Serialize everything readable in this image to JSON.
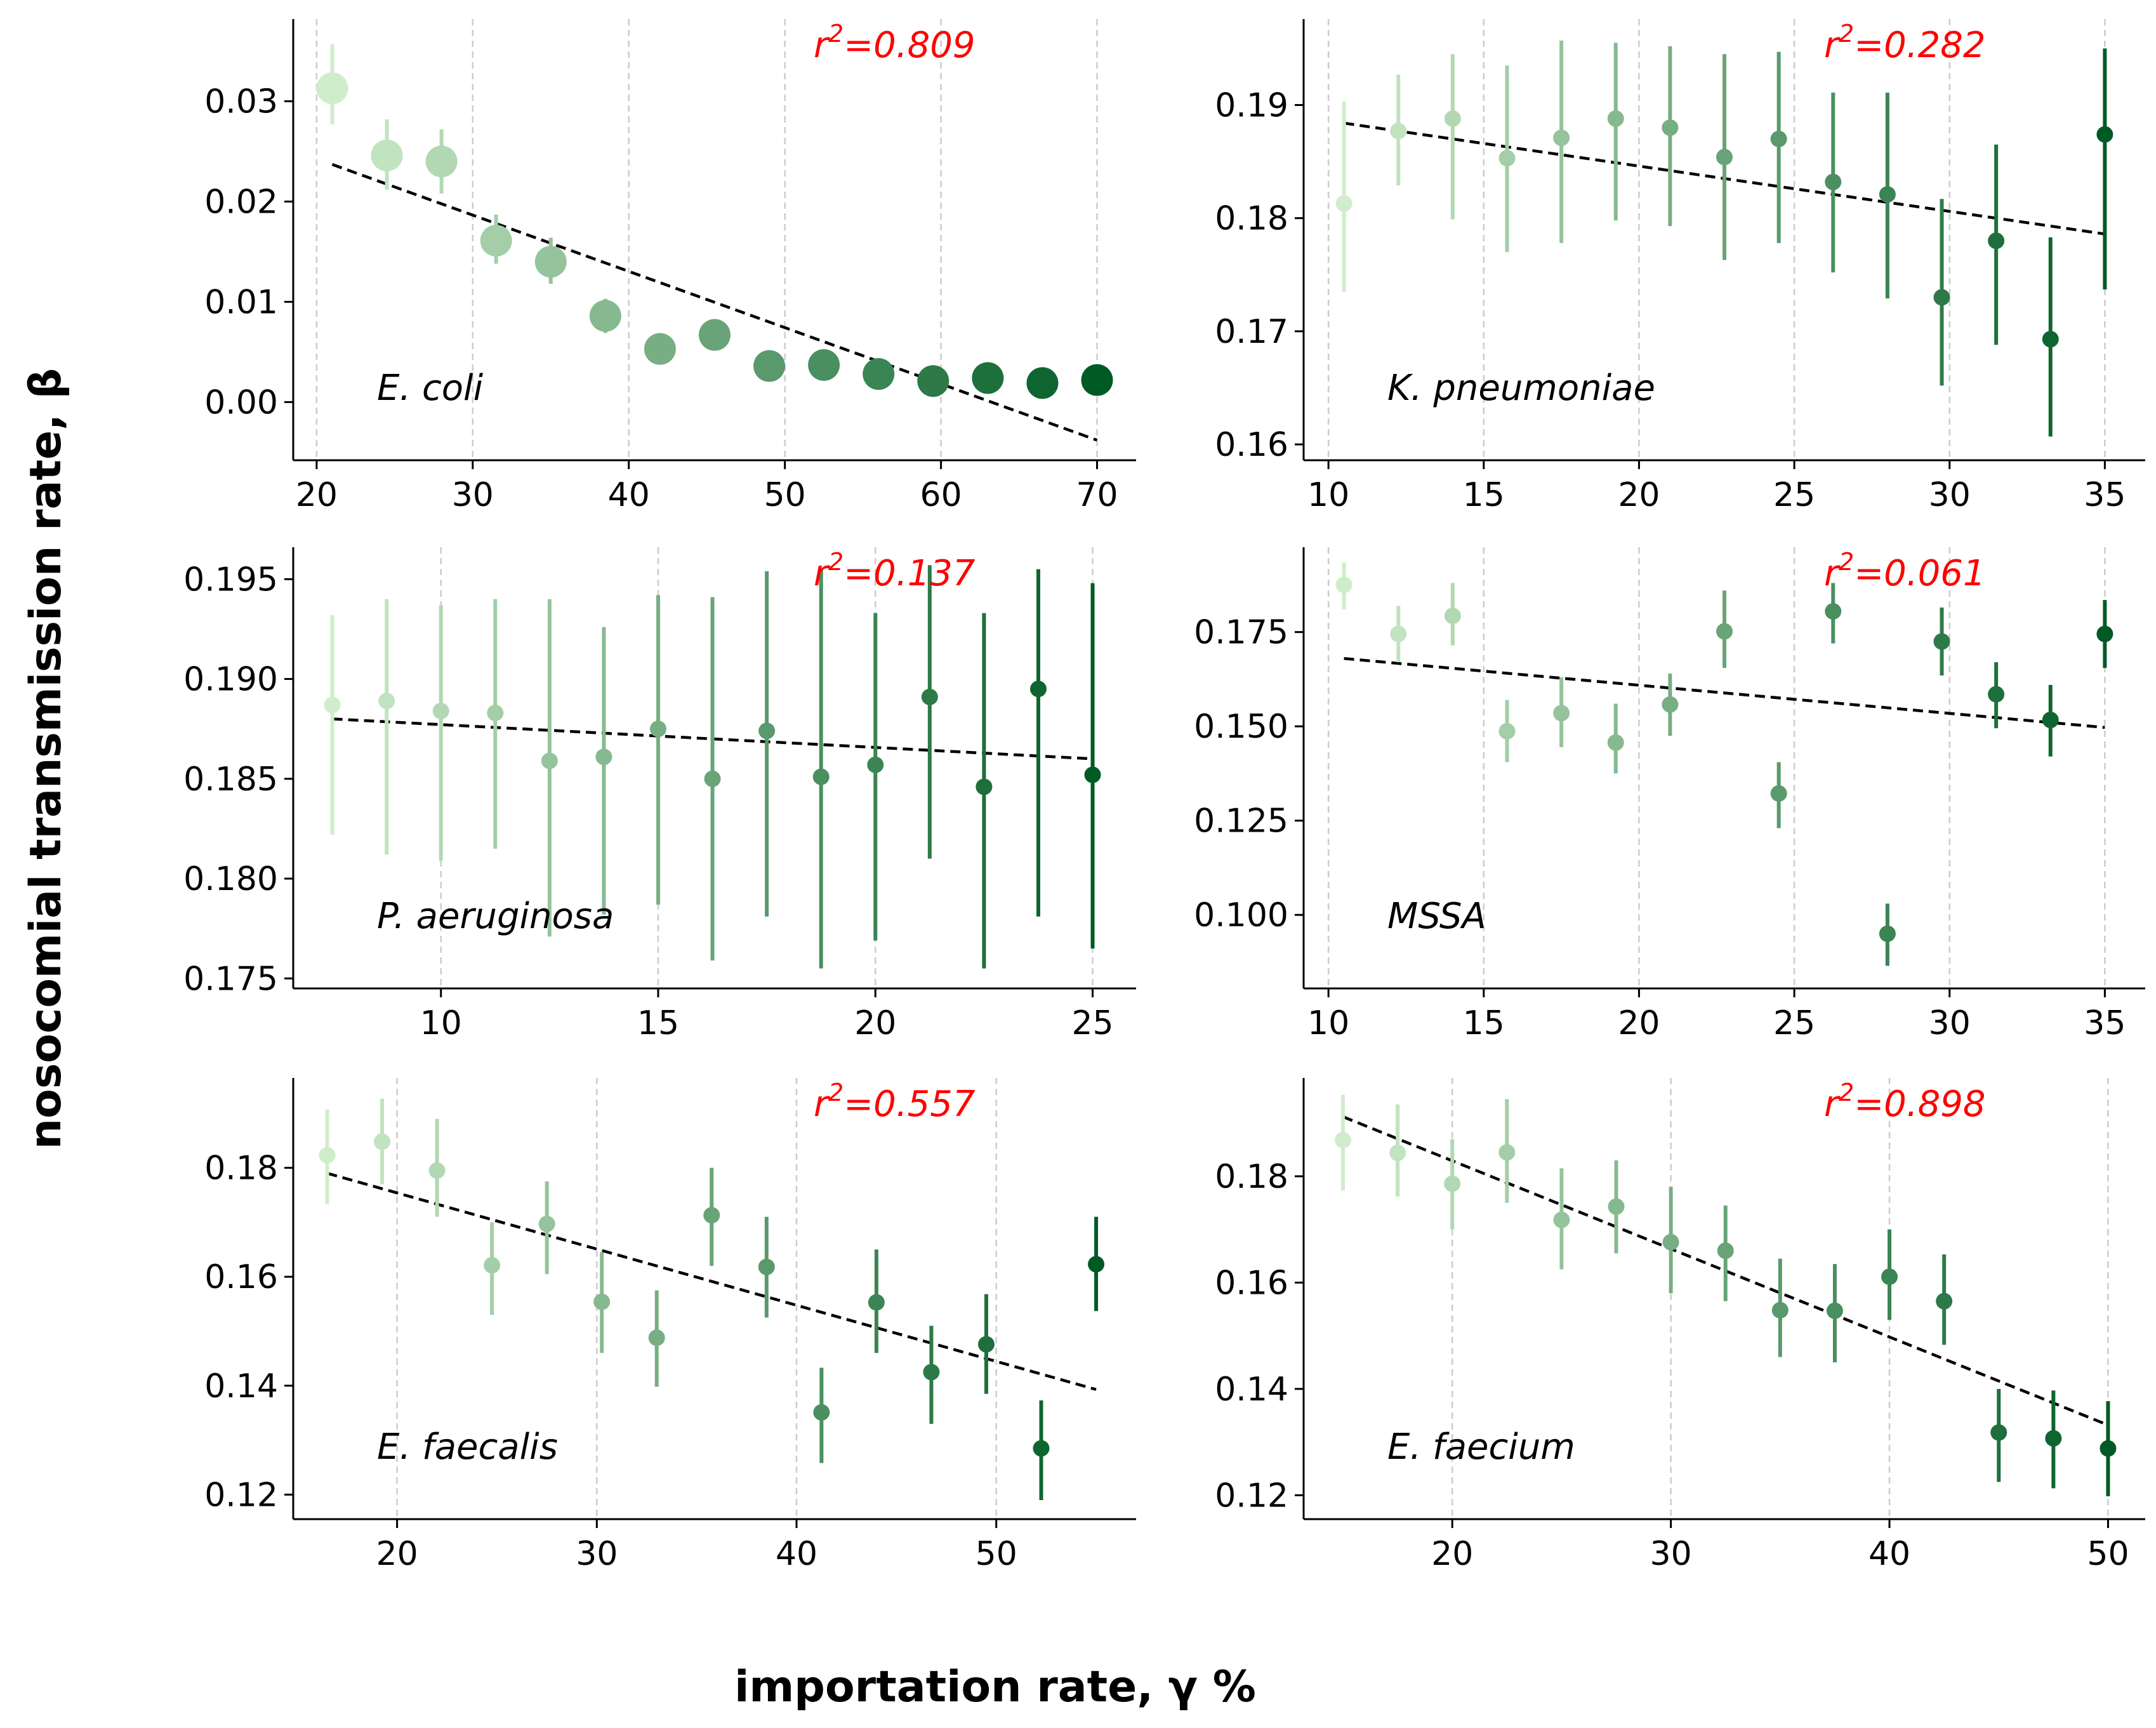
{
  "figure": {
    "xlabel": "importation rate, γ %",
    "ylabel": "nosocomial transmission rate, β"
  },
  "colors": {
    "light": "#d0edcb",
    "dark": "#005a24",
    "fit": "#000000",
    "r2": "#ff0000",
    "grid": "#cccccc"
  },
  "chart_data": [
    {
      "type": "scatter",
      "label": "E. coli",
      "r2_prefix": "r",
      "r2_exp": "2",
      "r2_value": "=0.809",
      "xlim": [
        18.5,
        72.5
      ],
      "ylim": [
        -0.0058,
        0.0382
      ],
      "xticks": [
        20,
        30,
        40,
        50,
        60,
        70
      ],
      "yticks": [
        0.0,
        0.01,
        0.02,
        0.03
      ],
      "ytick_labels": [
        "0.00",
        "0.01",
        "0.02",
        "0.03"
      ],
      "xgrid": [
        20,
        30,
        40,
        50,
        60,
        70
      ],
      "big_markers": true,
      "points": [
        {
          "x": 21.0,
          "y": 0.0313,
          "lo": 0.0277,
          "hi": 0.0357
        },
        {
          "x": 24.5,
          "y": 0.0246,
          "lo": 0.0212,
          "hi": 0.0282
        },
        {
          "x": 28.0,
          "y": 0.024,
          "lo": 0.0208,
          "hi": 0.0272
        },
        {
          "x": 31.5,
          "y": 0.0161,
          "lo": 0.0138,
          "hi": 0.0187
        },
        {
          "x": 35.0,
          "y": 0.014,
          "lo": 0.0118,
          "hi": 0.0164
        },
        {
          "x": 38.5,
          "y": 0.0086,
          "lo": 0.0069,
          "hi": 0.0103
        },
        {
          "x": 42.0,
          "y": 0.0053,
          "lo": 0.0053,
          "hi": 0.0053
        },
        {
          "x": 45.5,
          "y": 0.0067,
          "lo": 0.0067,
          "hi": 0.0067
        },
        {
          "x": 49.0,
          "y": 0.0036,
          "lo": 0.0036,
          "hi": 0.0036
        },
        {
          "x": 52.5,
          "y": 0.0037,
          "lo": 0.0037,
          "hi": 0.0037
        },
        {
          "x": 56.0,
          "y": 0.0028,
          "lo": 0.0028,
          "hi": 0.0028
        },
        {
          "x": 59.5,
          "y": 0.0021,
          "lo": 0.0021,
          "hi": 0.0021
        },
        {
          "x": 63.0,
          "y": 0.0024,
          "lo": 0.0024,
          "hi": 0.0024
        },
        {
          "x": 66.5,
          "y": 0.0019,
          "lo": 0.0019,
          "hi": 0.0019
        },
        {
          "x": 70.0,
          "y": 0.0022,
          "lo": 0.0022,
          "hi": 0.0022
        }
      ],
      "fit": {
        "x": [
          21,
          70
        ],
        "y": [
          0.0237,
          -0.0038
        ]
      }
    },
    {
      "type": "scatter",
      "label": "K. pneumoniae",
      "r2_prefix": "r",
      "r2_exp": "2",
      "r2_value": "=0.282",
      "xlim": [
        9.2,
        36.3
      ],
      "ylim": [
        0.1586,
        0.1976
      ],
      "xticks": [
        10,
        15,
        20,
        25,
        30,
        35
      ],
      "yticks": [
        0.16,
        0.17,
        0.18,
        0.19
      ],
      "ytick_labels": [
        "0.16",
        "0.17",
        "0.18",
        "0.19"
      ],
      "xgrid": [
        10,
        15,
        20,
        25,
        30,
        35
      ],
      "big_markers": false,
      "points": [
        {
          "x": 10.5,
          "y": 0.1813,
          "lo": 0.1735,
          "hi": 0.1903
        },
        {
          "x": 12.25,
          "y": 0.1877,
          "lo": 0.1829,
          "hi": 0.1927
        },
        {
          "x": 14.0,
          "y": 0.1888,
          "lo": 0.1799,
          "hi": 0.1945
        },
        {
          "x": 15.75,
          "y": 0.1853,
          "lo": 0.177,
          "hi": 0.1935
        },
        {
          "x": 17.5,
          "y": 0.1871,
          "lo": 0.1778,
          "hi": 0.1957
        },
        {
          "x": 19.25,
          "y": 0.1888,
          "lo": 0.1798,
          "hi": 0.1955
        },
        {
          "x": 21.0,
          "y": 0.188,
          "lo": 0.1793,
          "hi": 0.1952
        },
        {
          "x": 22.75,
          "y": 0.1854,
          "lo": 0.1763,
          "hi": 0.1945
        },
        {
          "x": 24.5,
          "y": 0.187,
          "lo": 0.1778,
          "hi": 0.1947
        },
        {
          "x": 26.25,
          "y": 0.1832,
          "lo": 0.1752,
          "hi": 0.1911
        },
        {
          "x": 28.0,
          "y": 0.1821,
          "lo": 0.1729,
          "hi": 0.1911
        },
        {
          "x": 29.75,
          "y": 0.173,
          "lo": 0.1652,
          "hi": 0.1817
        },
        {
          "x": 31.5,
          "y": 0.178,
          "lo": 0.1688,
          "hi": 0.1865
        },
        {
          "x": 33.25,
          "y": 0.1693,
          "lo": 0.1607,
          "hi": 0.1783
        },
        {
          "x": 35.0,
          "y": 0.1874,
          "lo": 0.1737,
          "hi": 0.195
        }
      ],
      "fit": {
        "x": [
          10.5,
          35
        ],
        "y": [
          0.1884,
          0.1786
        ]
      }
    },
    {
      "type": "scatter",
      "label": "P. aeruginosa",
      "r2_prefix": "r",
      "r2_exp": "2",
      "r2_value": "=0.137",
      "xlim": [
        6.6,
        26.0
      ],
      "ylim": [
        0.1745,
        0.1966
      ],
      "xticks": [
        10,
        15,
        20,
        25
      ],
      "yticks": [
        0.175,
        0.18,
        0.185,
        0.19,
        0.195
      ],
      "ytick_labels": [
        "0.175",
        "0.180",
        "0.185",
        "0.190",
        "0.195"
      ],
      "xgrid": [
        10,
        15,
        20,
        25
      ],
      "big_markers": false,
      "points": [
        {
          "x": 7.5,
          "y": 0.1887,
          "lo": 0.1822,
          "hi": 0.1932
        },
        {
          "x": 8.75,
          "y": 0.1889,
          "lo": 0.1812,
          "hi": 0.194
        },
        {
          "x": 10.0,
          "y": 0.1884,
          "lo": 0.1809,
          "hi": 0.1937
        },
        {
          "x": 11.25,
          "y": 0.1883,
          "lo": 0.1815,
          "hi": 0.194
        },
        {
          "x": 12.5,
          "y": 0.1859,
          "lo": 0.1771,
          "hi": 0.194
        },
        {
          "x": 13.75,
          "y": 0.1861,
          "lo": 0.1782,
          "hi": 0.1926
        },
        {
          "x": 15.0,
          "y": 0.1875,
          "lo": 0.1787,
          "hi": 0.1942
        },
        {
          "x": 16.25,
          "y": 0.185,
          "lo": 0.1759,
          "hi": 0.1941
        },
        {
          "x": 17.5,
          "y": 0.1874,
          "lo": 0.1781,
          "hi": 0.1954
        },
        {
          "x": 18.75,
          "y": 0.1851,
          "lo": 0.1755,
          "hi": 0.1955
        },
        {
          "x": 20.0,
          "y": 0.1857,
          "lo": 0.1769,
          "hi": 0.1933
        },
        {
          "x": 21.25,
          "y": 0.1891,
          "lo": 0.181,
          "hi": 0.1957
        },
        {
          "x": 22.5,
          "y": 0.1846,
          "lo": 0.1755,
          "hi": 0.1933
        },
        {
          "x": 23.75,
          "y": 0.1895,
          "lo": 0.1781,
          "hi": 0.1955
        },
        {
          "x": 25.0,
          "y": 0.1852,
          "lo": 0.1765,
          "hi": 0.1948
        }
      ],
      "fit": {
        "x": [
          7.5,
          25
        ],
        "y": [
          0.188,
          0.186
        ]
      }
    },
    {
      "type": "scatter",
      "label": "MSSA",
      "r2_prefix": "r",
      "r2_exp": "2",
      "r2_value": "=0.061",
      "xlim": [
        9.2,
        36.3
      ],
      "ylim": [
        0.0805,
        0.1975
      ],
      "xticks": [
        10,
        15,
        20,
        25,
        30,
        35
      ],
      "yticks": [
        0.1,
        0.125,
        0.15,
        0.175
      ],
      "ytick_labels": [
        "0.100",
        "0.125",
        "0.150",
        "0.175"
      ],
      "xgrid": [
        10,
        15,
        20,
        25,
        30,
        35
      ],
      "big_markers": false,
      "points": [
        {
          "x": 10.5,
          "y": 0.1875,
          "lo": 0.181,
          "hi": 0.1935
        },
        {
          "x": 12.25,
          "y": 0.1745,
          "lo": 0.167,
          "hi": 0.182
        },
        {
          "x": 14.0,
          "y": 0.1793,
          "lo": 0.1715,
          "hi": 0.188
        },
        {
          "x": 15.75,
          "y": 0.1487,
          "lo": 0.1405,
          "hi": 0.157
        },
        {
          "x": 17.5,
          "y": 0.1535,
          "lo": 0.1445,
          "hi": 0.163
        },
        {
          "x": 19.25,
          "y": 0.1457,
          "lo": 0.1375,
          "hi": 0.156
        },
        {
          "x": 21.0,
          "y": 0.1558,
          "lo": 0.1475,
          "hi": 0.164
        },
        {
          "x": 22.75,
          "y": 0.1752,
          "lo": 0.1655,
          "hi": 0.186
        },
        {
          "x": 24.5,
          "y": 0.1322,
          "lo": 0.123,
          "hi": 0.1405
        },
        {
          "x": 26.25,
          "y": 0.1805,
          "lo": 0.172,
          "hi": 0.188
        },
        {
          "x": 28.0,
          "y": 0.095,
          "lo": 0.0865,
          "hi": 0.103
        },
        {
          "x": 29.75,
          "y": 0.1725,
          "lo": 0.1635,
          "hi": 0.1815
        },
        {
          "x": 31.5,
          "y": 0.1585,
          "lo": 0.1495,
          "hi": 0.167
        },
        {
          "x": 33.25,
          "y": 0.1517,
          "lo": 0.142,
          "hi": 0.161
        },
        {
          "x": 35.0,
          "y": 0.1745,
          "lo": 0.1655,
          "hi": 0.1835
        }
      ],
      "fit": {
        "x": [
          10.5,
          35
        ],
        "y": [
          0.168,
          0.1497
        ]
      }
    },
    {
      "type": "scatter",
      "label": "E. faecalis",
      "r2_prefix": "r",
      "r2_exp": "2",
      "r2_value": "=0.557",
      "xlim": [
        14.8,
        57.0
      ],
      "ylim": [
        0.1155,
        0.1965
      ],
      "xticks": [
        20,
        30,
        40,
        50
      ],
      "yticks": [
        0.12,
        0.14,
        0.16,
        0.18
      ],
      "ytick_labels": [
        "0.12",
        "0.14",
        "0.16",
        "0.18"
      ],
      "xgrid": [
        20,
        30,
        40,
        50
      ],
      "big_markers": false,
      "points": [
        {
          "x": 16.5,
          "y": 0.1823,
          "lo": 0.1733,
          "hi": 0.1907
        },
        {
          "x": 19.25,
          "y": 0.1848,
          "lo": 0.177,
          "hi": 0.1927
        },
        {
          "x": 22.0,
          "y": 0.1795,
          "lo": 0.171,
          "hi": 0.189
        },
        {
          "x": 24.75,
          "y": 0.1621,
          "lo": 0.153,
          "hi": 0.17
        },
        {
          "x": 27.5,
          "y": 0.1697,
          "lo": 0.1605,
          "hi": 0.1775
        },
        {
          "x": 30.25,
          "y": 0.1554,
          "lo": 0.146,
          "hi": 0.1645
        },
        {
          "x": 33.0,
          "y": 0.1488,
          "lo": 0.1398,
          "hi": 0.1575
        },
        {
          "x": 35.75,
          "y": 0.1713,
          "lo": 0.162,
          "hi": 0.18
        },
        {
          "x": 38.5,
          "y": 0.1618,
          "lo": 0.1525,
          "hi": 0.171
        },
        {
          "x": 41.25,
          "y": 0.1351,
          "lo": 0.1258,
          "hi": 0.1433
        },
        {
          "x": 44.0,
          "y": 0.1553,
          "lo": 0.146,
          "hi": 0.165
        },
        {
          "x": 46.75,
          "y": 0.1425,
          "lo": 0.133,
          "hi": 0.151
        },
        {
          "x": 49.5,
          "y": 0.1476,
          "lo": 0.1385,
          "hi": 0.1568
        },
        {
          "x": 52.25,
          "y": 0.1285,
          "lo": 0.119,
          "hi": 0.1373
        },
        {
          "x": 55.0,
          "y": 0.1623,
          "lo": 0.1537,
          "hi": 0.171
        }
      ],
      "fit": {
        "x": [
          16.5,
          55
        ],
        "y": [
          0.179,
          0.1393
        ]
      }
    },
    {
      "type": "scatter",
      "label": "E. faecium",
      "r2_prefix": "r",
      "r2_exp": "2",
      "r2_value": "=0.898",
      "xlim": [
        13.2,
        51.7
      ],
      "ylim": [
        0.1155,
        0.1985
      ],
      "xticks": [
        20,
        30,
        40,
        50
      ],
      "yticks": [
        0.12,
        0.14,
        0.16,
        0.18
      ],
      "ytick_labels": [
        "0.12",
        "0.14",
        "0.16",
        "0.18"
      ],
      "xgrid": [
        20,
        30,
        40,
        50
      ],
      "big_markers": false,
      "points": [
        {
          "x": 15.0,
          "y": 0.1868,
          "lo": 0.1773,
          "hi": 0.1953
        },
        {
          "x": 17.5,
          "y": 0.1844,
          "lo": 0.1762,
          "hi": 0.1935
        },
        {
          "x": 20.0,
          "y": 0.1786,
          "lo": 0.17,
          "hi": 0.187
        },
        {
          "x": 22.5,
          "y": 0.1845,
          "lo": 0.175,
          "hi": 0.1945
        },
        {
          "x": 25.0,
          "y": 0.1718,
          "lo": 0.1625,
          "hi": 0.1815
        },
        {
          "x": 27.5,
          "y": 0.1743,
          "lo": 0.1655,
          "hi": 0.183
        },
        {
          "x": 30.0,
          "y": 0.1676,
          "lo": 0.158,
          "hi": 0.178
        },
        {
          "x": 32.5,
          "y": 0.166,
          "lo": 0.1565,
          "hi": 0.1745
        },
        {
          "x": 35.0,
          "y": 0.1548,
          "lo": 0.146,
          "hi": 0.1645
        },
        {
          "x": 37.5,
          "y": 0.1547,
          "lo": 0.145,
          "hi": 0.1635
        },
        {
          "x": 40.0,
          "y": 0.1611,
          "lo": 0.153,
          "hi": 0.17
        },
        {
          "x": 42.5,
          "y": 0.1565,
          "lo": 0.1483,
          "hi": 0.1653
        },
        {
          "x": 45.0,
          "y": 0.1318,
          "lo": 0.1225,
          "hi": 0.14
        },
        {
          "x": 47.5,
          "y": 0.1307,
          "lo": 0.1213,
          "hi": 0.1397
        },
        {
          "x": 50.0,
          "y": 0.1288,
          "lo": 0.1198,
          "hi": 0.1377
        }
      ],
      "fit": {
        "x": [
          15,
          50
        ],
        "y": [
          0.1912,
          0.1332
        ]
      }
    }
  ]
}
